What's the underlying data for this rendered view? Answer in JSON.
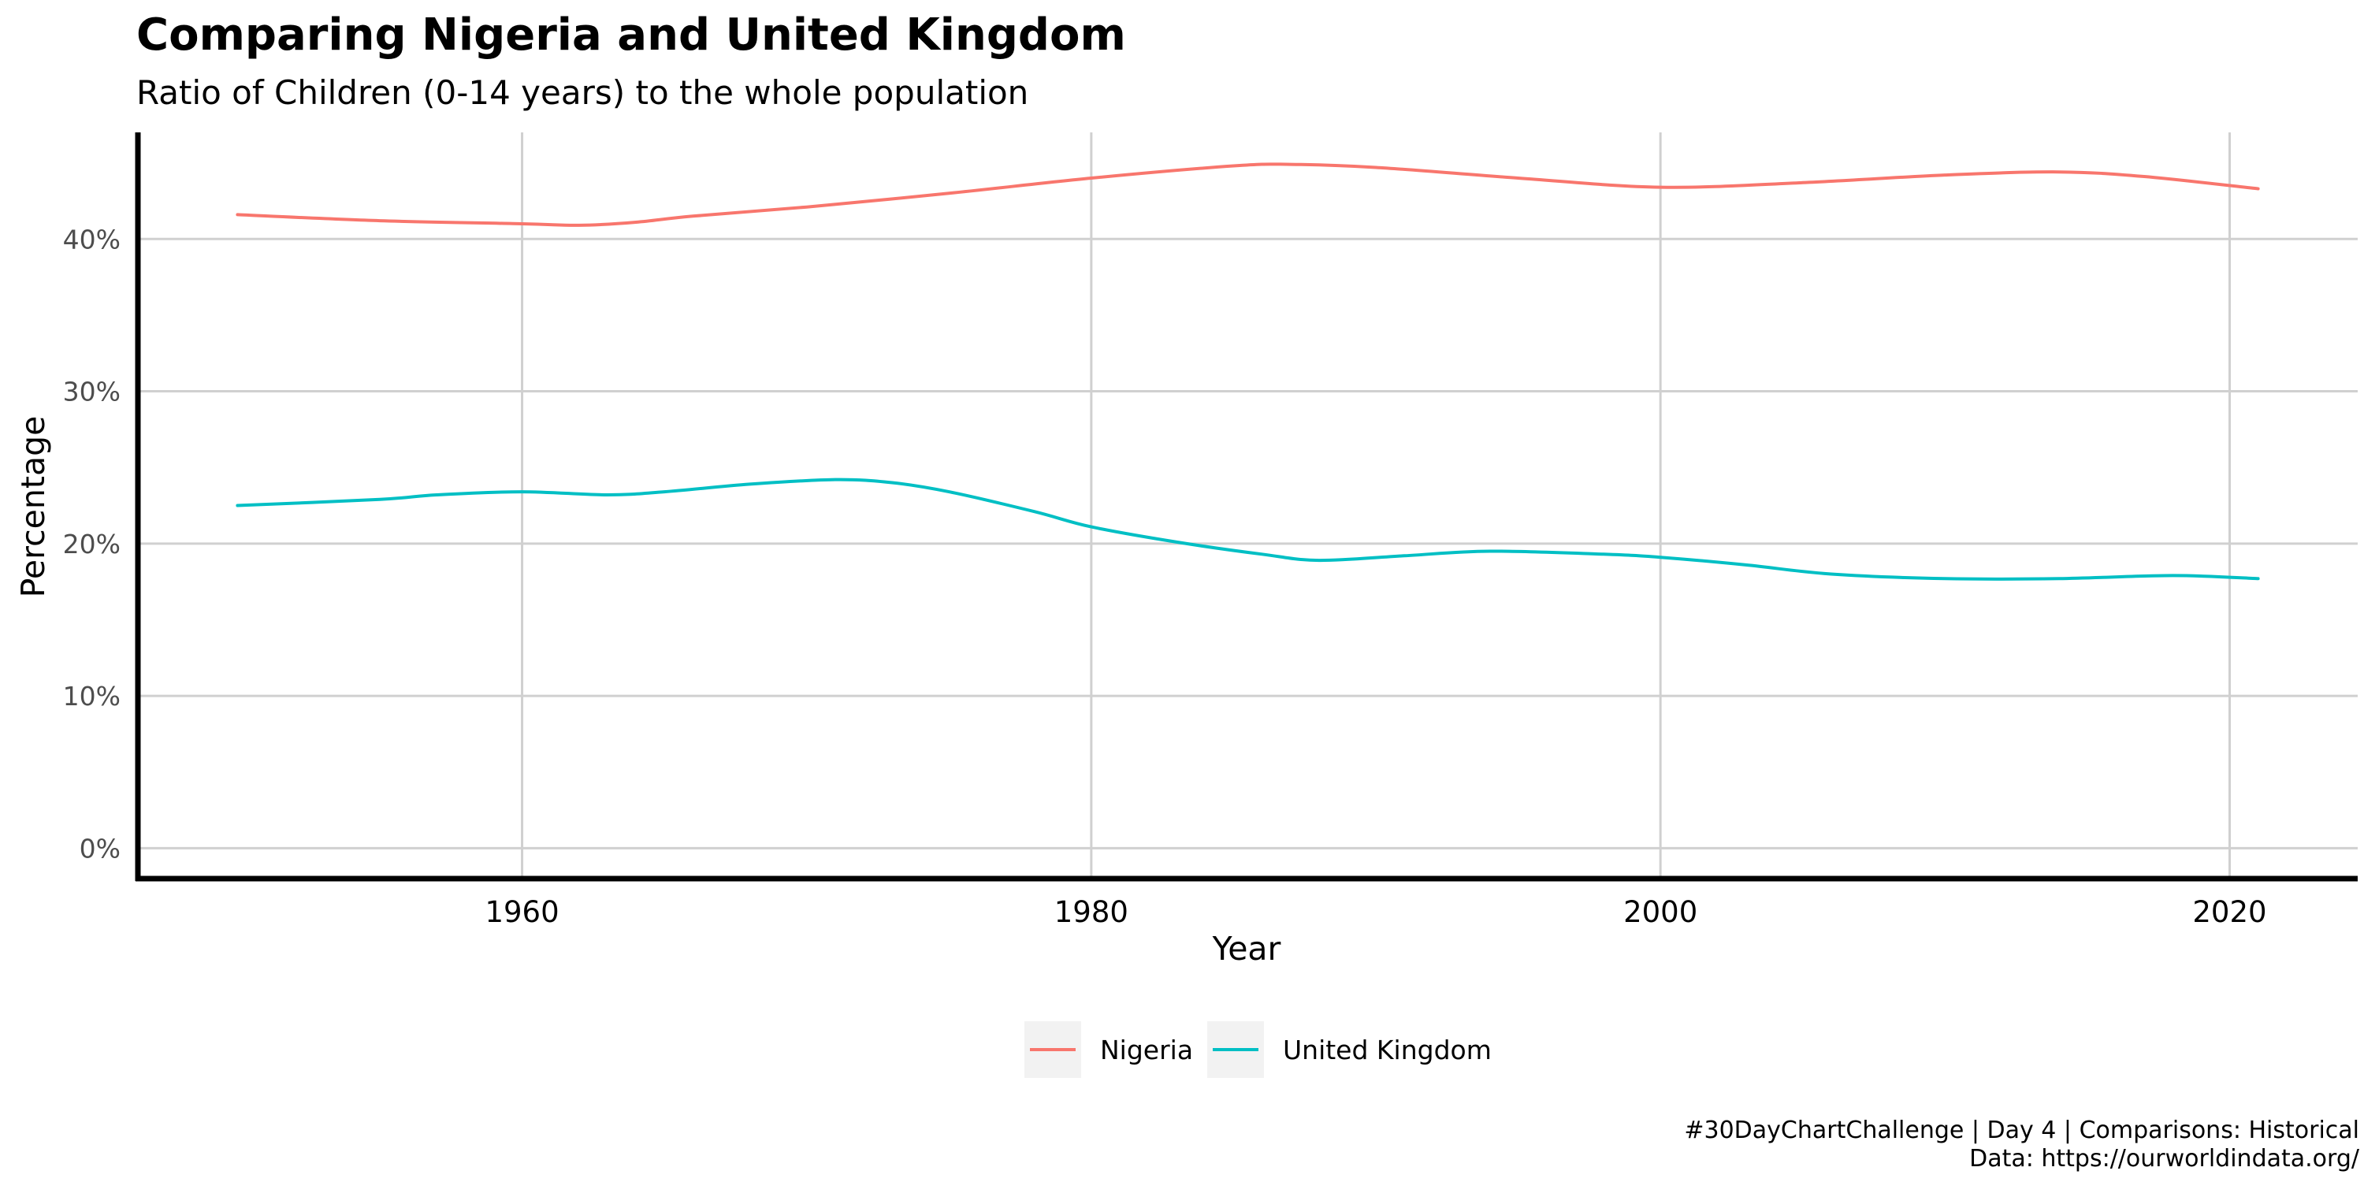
{
  "chart_data": {
    "type": "line",
    "title": "Comparing Nigeria and United Kingdom",
    "subtitle": "Ratio of Children (0-14 years) to the whole population",
    "xlabel": "Year",
    "ylabel": "Percentage",
    "xlim": [
      1946.5,
      2024.5
    ],
    "ylim": [
      -2,
      47
    ],
    "x_ticks": [
      1960,
      1980,
      2000,
      2020
    ],
    "x_tick_labels": [
      "1960",
      "1980",
      "2000",
      "2020"
    ],
    "y_ticks": [
      0,
      10,
      20,
      30,
      40
    ],
    "y_tick_labels": [
      "0%",
      "10%",
      "20%",
      "30%",
      "40%"
    ],
    "grid": true,
    "legend_position": "bottom",
    "series": [
      {
        "name": "Nigeria",
        "color": "#F8766D",
        "x": [
          1950,
          1955,
          1960,
          1962,
          1964,
          1966,
          1970,
          1975,
          1980,
          1985,
          1987,
          1990,
          1995,
          2000,
          2005,
          2010,
          2014,
          2017,
          2021
        ],
        "values": [
          41.6,
          41.2,
          41.0,
          40.9,
          41.1,
          41.5,
          42.1,
          43.0,
          44.0,
          44.8,
          44.9,
          44.7,
          44.0,
          43.4,
          43.7,
          44.2,
          44.4,
          44.1,
          43.3
        ]
      },
      {
        "name": "United Kingdom",
        "color": "#00BFC4",
        "x": [
          1950,
          1955,
          1957,
          1960,
          1963,
          1965,
          1968,
          1971,
          1973,
          1975,
          1978,
          1980,
          1983,
          1986,
          1988,
          1991,
          1994,
          1998,
          2000,
          2003,
          2006,
          2010,
          2014,
          2018,
          2021
        ],
        "values": [
          22.5,
          22.9,
          23.2,
          23.4,
          23.2,
          23.4,
          23.9,
          24.2,
          24.0,
          23.4,
          22.1,
          21.1,
          20.1,
          19.3,
          18.9,
          19.2,
          19.5,
          19.3,
          19.1,
          18.6,
          18.0,
          17.7,
          17.7,
          17.9,
          17.7
        ]
      }
    ]
  },
  "caption": {
    "line1": "#30DayChartChallenge | Day 4 | Comparisons: Historical",
    "line2": "Data: https://ourworldindata.org/"
  }
}
